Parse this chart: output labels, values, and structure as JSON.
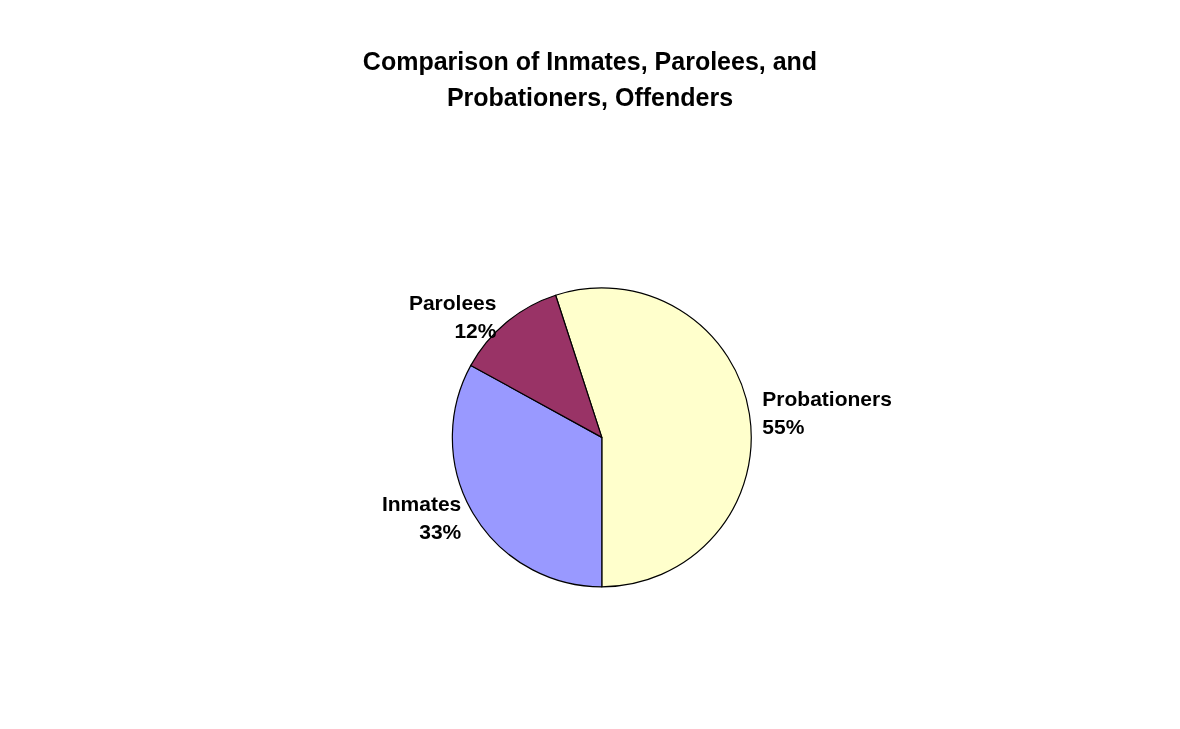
{
  "chart_data": {
    "type": "pie",
    "title": "Comparison of Inmates, Parolees, and\nProbationers, Offenders",
    "categories": [
      "Probationers",
      "Inmates",
      "Parolees"
    ],
    "values": [
      55,
      33,
      12
    ],
    "value_labels": [
      "55%",
      "33%",
      "12%"
    ],
    "colors": [
      "#ffffcc",
      "#9999ff",
      "#993366"
    ],
    "legend": false
  }
}
